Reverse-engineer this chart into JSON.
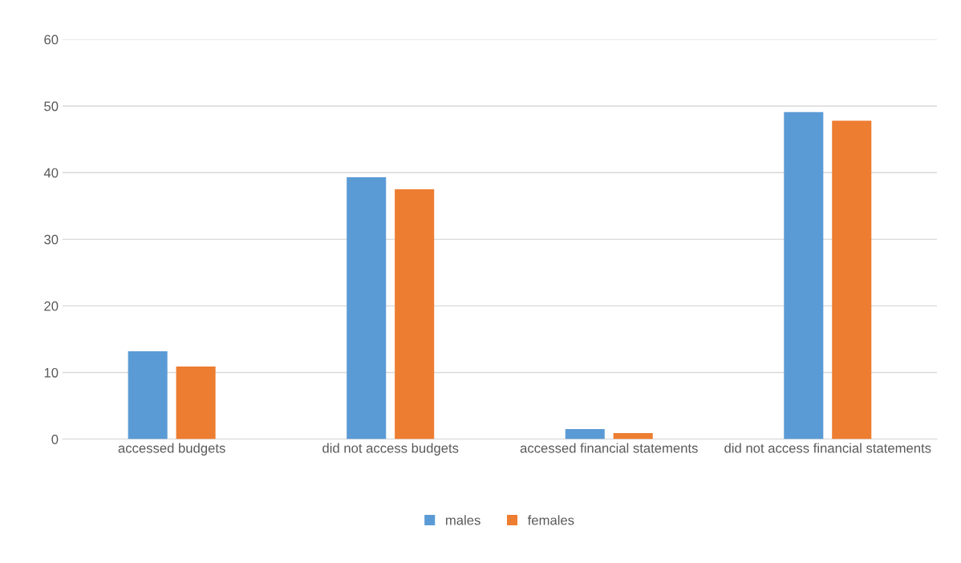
{
  "chart_data": {
    "type": "bar",
    "categories": [
      "accessed budgets",
      "did not access budgets",
      "accessed financial statements",
      "did not access financial statements"
    ],
    "series": [
      {
        "name": "males",
        "color": "#5b9bd5",
        "values": [
          13.2,
          39.3,
          1.5,
          49.1
        ]
      },
      {
        "name": "females",
        "color": "#ed7d31",
        "values": [
          10.9,
          37.5,
          0.9,
          47.8
        ]
      }
    ],
    "ylim": [
      0,
      60
    ],
    "yticks": [
      0,
      10,
      20,
      30,
      40,
      50,
      60
    ],
    "grid": "y",
    "legend": "bottom"
  }
}
